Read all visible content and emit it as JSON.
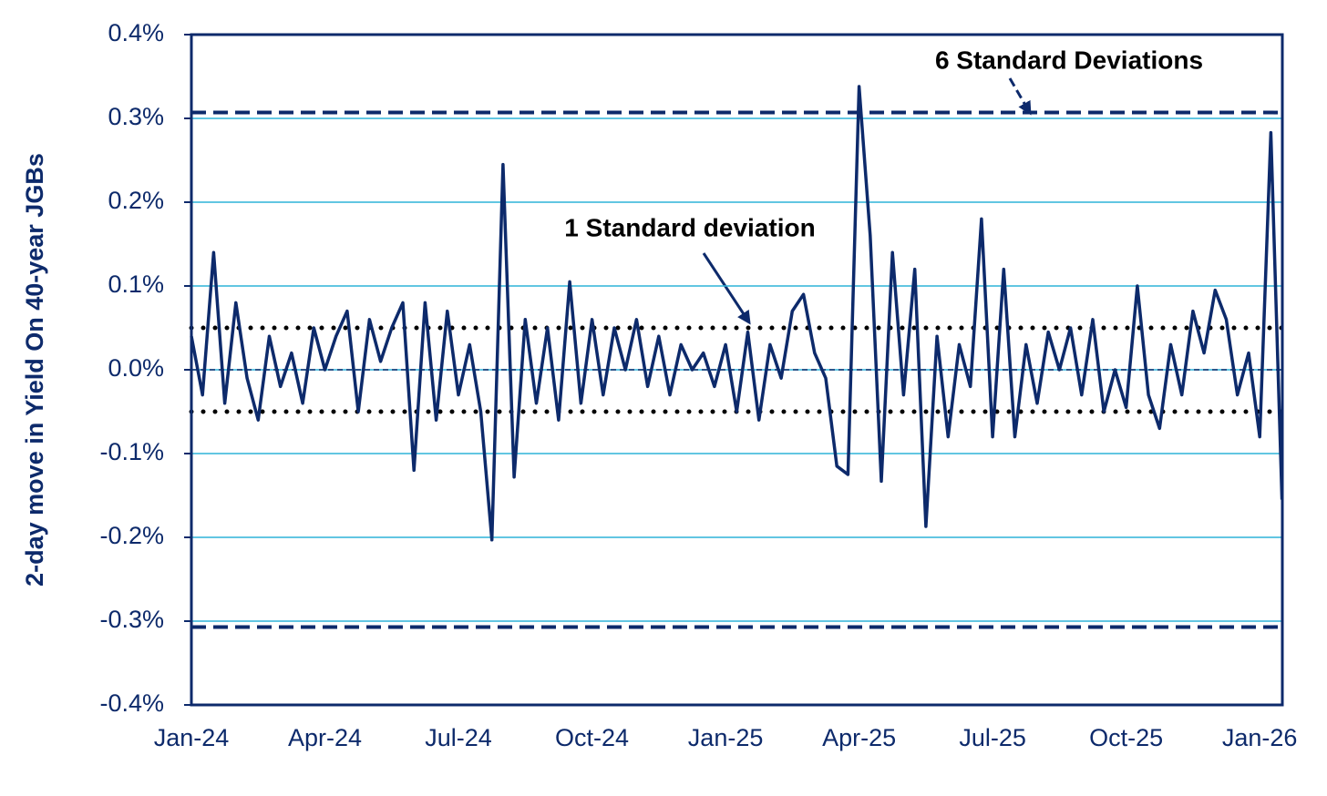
{
  "chart_data": {
    "type": "line",
    "y_label": "2-day move in Yield On 40-year JGBs",
    "categories": [
      "Jan-24",
      null,
      null,
      null,
      null,
      null,
      null,
      null,
      null,
      null,
      null,
      null,
      "Apr-24",
      null,
      null,
      null,
      null,
      null,
      null,
      null,
      null,
      null,
      null,
      null,
      "Jul-24",
      null,
      null,
      null,
      null,
      null,
      null,
      null,
      null,
      null,
      null,
      null,
      "Oct-24",
      null,
      null,
      null,
      null,
      null,
      null,
      null,
      null,
      null,
      null,
      null,
      "Jan-25",
      null,
      null,
      null,
      null,
      null,
      null,
      null,
      null,
      null,
      null,
      null,
      "Apr-25",
      null,
      null,
      null,
      null,
      null,
      null,
      null,
      null,
      null,
      null,
      null,
      "Jul-25",
      null,
      null,
      null,
      null,
      null,
      null,
      null,
      null,
      null,
      null,
      null,
      "Oct-25",
      null,
      null,
      null,
      null,
      null,
      null,
      null,
      null,
      null,
      null,
      null,
      "Jan-26",
      null,
      null
    ],
    "series": [
      {
        "color": "#0d2a6b",
        "values": [
          0.04,
          -0.03,
          0.14,
          -0.04,
          0.08,
          -0.01,
          -0.06,
          0.04,
          -0.02,
          0.02,
          -0.04,
          0.05,
          0.0,
          0.04,
          0.07,
          -0.05,
          0.06,
          0.01,
          0.05,
          0.08,
          -0.12,
          0.08,
          -0.06,
          0.07,
          -0.03,
          0.03,
          -0.05,
          -0.203,
          0.245,
          -0.128,
          0.06,
          -0.04,
          0.05,
          -0.06,
          0.105,
          -0.04,
          0.06,
          -0.03,
          0.05,
          0.0,
          0.06,
          -0.02,
          0.04,
          -0.03,
          0.03,
          0.0,
          0.02,
          -0.02,
          0.03,
          -0.05,
          0.045,
          -0.06,
          0.03,
          -0.01,
          0.07,
          0.09,
          0.02,
          -0.01,
          -0.115,
          -0.125,
          0.338,
          0.16,
          -0.133,
          0.14,
          -0.03,
          0.12,
          -0.187,
          0.04,
          -0.08,
          0.03,
          -0.02,
          0.18,
          -0.08,
          0.12,
          -0.08,
          0.03,
          -0.04,
          0.045,
          0.0,
          0.05,
          -0.03,
          0.06,
          -0.05,
          0.0,
          -0.045,
          0.1,
          -0.03,
          -0.07,
          0.03,
          -0.03,
          0.07,
          0.02,
          0.095,
          0.06,
          -0.03,
          0.02,
          -0.08,
          0.283,
          -0.155
        ]
      }
    ],
    "reference_lines": [
      {
        "value": 0.307,
        "style": "dashed"
      },
      {
        "value": -0.307,
        "style": "dashed"
      },
      {
        "value": 0.05,
        "style": "dotted"
      },
      {
        "value": -0.05,
        "style": "dotted"
      },
      {
        "value": 0,
        "style": "thin"
      }
    ],
    "annotations": [
      {
        "text": "6 Standard Deviations"
      },
      {
        "text": "1 Standard deviation"
      }
    ],
    "ylim": [
      -0.4,
      0.4
    ],
    "yticks": [
      {
        "value": -0.4,
        "label": "-0.4%"
      },
      {
        "value": -0.3,
        "label": "-0.3%"
      },
      {
        "value": -0.2,
        "label": "-0.2%"
      },
      {
        "value": -0.1,
        "label": "-0.1%"
      },
      {
        "value": 0,
        "label": "0.0%"
      },
      {
        "value": 0.1,
        "label": "0.1%"
      },
      {
        "value": 0.2,
        "label": "0.2%"
      },
      {
        "value": 0.3,
        "label": "0.3%"
      },
      {
        "value": 0.4,
        "label": "0.4%"
      }
    ],
    "grid": true
  }
}
